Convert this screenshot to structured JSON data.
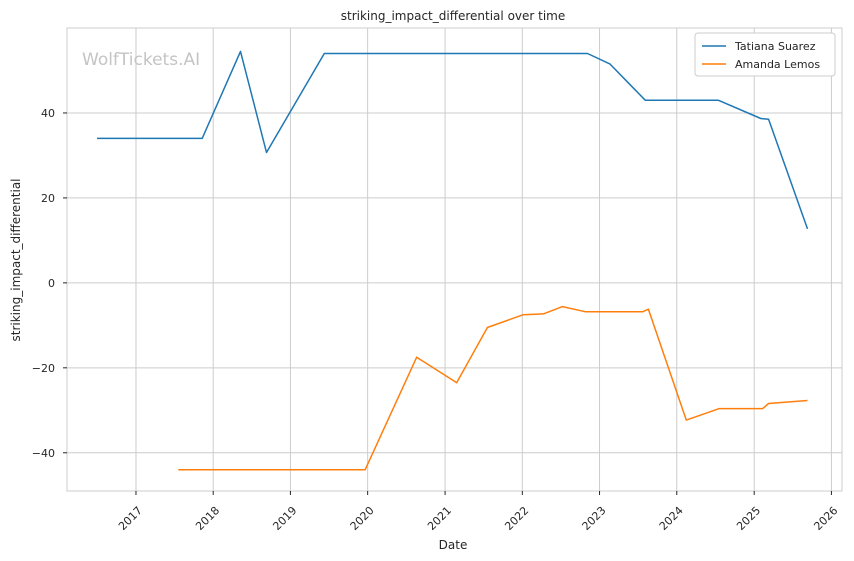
{
  "chart_data": {
    "type": "line",
    "title": "striking_impact_differential over time",
    "xlabel": "Date",
    "ylabel": "striking_impact_differential",
    "watermark": "WolfTickets.AI",
    "xlim": [
      "2016-02-10",
      "2026-02-20"
    ],
    "ylim": [
      -49,
      60
    ],
    "x_ticks": [
      "2017",
      "2018",
      "2019",
      "2020",
      "2021",
      "2022",
      "2023",
      "2024",
      "2025",
      "2026"
    ],
    "y_ticks": [
      -40,
      -20,
      0,
      20,
      40
    ],
    "y_tick_labels": [
      "−40",
      "−20",
      "0",
      "20",
      "40"
    ],
    "grid": true,
    "legend": "top-right",
    "series": [
      {
        "name": "Tatiana Suarez",
        "color": "#1f77b4",
        "points": [
          [
            "2016-07-01",
            34
          ],
          [
            "2017-11-10",
            34
          ],
          [
            "2018-05-10",
            54.5
          ],
          [
            "2018-09-10",
            30.7
          ],
          [
            "2019-06-10",
            54
          ],
          [
            "2022-11-05",
            54
          ],
          [
            "2023-02-20",
            51.5
          ],
          [
            "2023-08-05",
            43
          ],
          [
            "2024-07-15",
            43
          ],
          [
            "2025-02-01",
            38.7
          ],
          [
            "2025-03-10",
            38.5
          ],
          [
            "2025-09-10",
            12.7
          ]
        ]
      },
      {
        "name": "Amanda Lemos",
        "color": "#ff7f0e",
        "points": [
          [
            "2017-07-20",
            -44
          ],
          [
            "2019-12-20",
            -44
          ],
          [
            "2020-08-20",
            -17.5
          ],
          [
            "2021-02-25",
            -23.5
          ],
          [
            "2021-07-20",
            -10.5
          ],
          [
            "2022-01-05",
            -7.5
          ],
          [
            "2022-04-10",
            -7.3
          ],
          [
            "2022-07-10",
            -5.6
          ],
          [
            "2022-10-25",
            -6.8
          ],
          [
            "2023-07-25",
            -6.8
          ],
          [
            "2023-08-20",
            -6.2
          ],
          [
            "2024-02-15",
            -32.3
          ],
          [
            "2024-07-20",
            -29.6
          ],
          [
            "2025-02-10",
            -29.6
          ],
          [
            "2025-03-10",
            -28.4
          ],
          [
            "2025-09-10",
            -27.7
          ]
        ]
      }
    ]
  }
}
